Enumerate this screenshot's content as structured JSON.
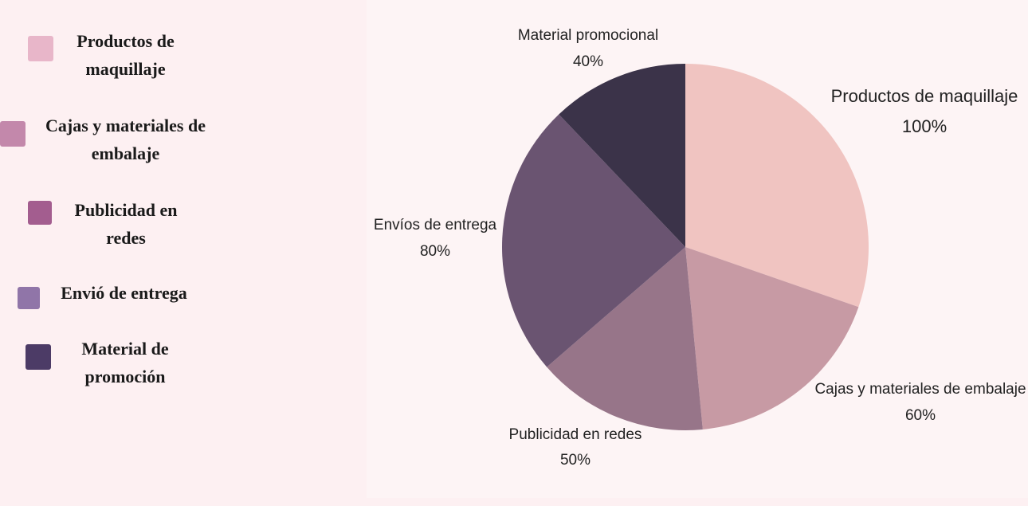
{
  "chart_data": {
    "type": "pie",
    "categories": [
      "Productos de maquillaje",
      "Cajas y materiales de embalaje",
      "Publicidad en redes",
      "Envíos de entrega",
      "Material promocional"
    ],
    "values": [
      100,
      60,
      50,
      80,
      40
    ],
    "value_labels": [
      "100%",
      "60%",
      "50%",
      "80%",
      "40%"
    ],
    "colors": [
      "#f0c4c1",
      "#c79aa4",
      "#977589",
      "#6a5471",
      "#3b3349"
    ],
    "legend": {
      "labels": [
        "Productos de maquillaje",
        "Cajas y materiales de embalaje",
        "Publicidad en redes",
        "Envió de entrega",
        "Material de promoción"
      ],
      "colors": [
        "#e8b6c9",
        "#c388ab",
        "#a35d8f",
        "#9075a8",
        "#4c3b66"
      ]
    }
  }
}
